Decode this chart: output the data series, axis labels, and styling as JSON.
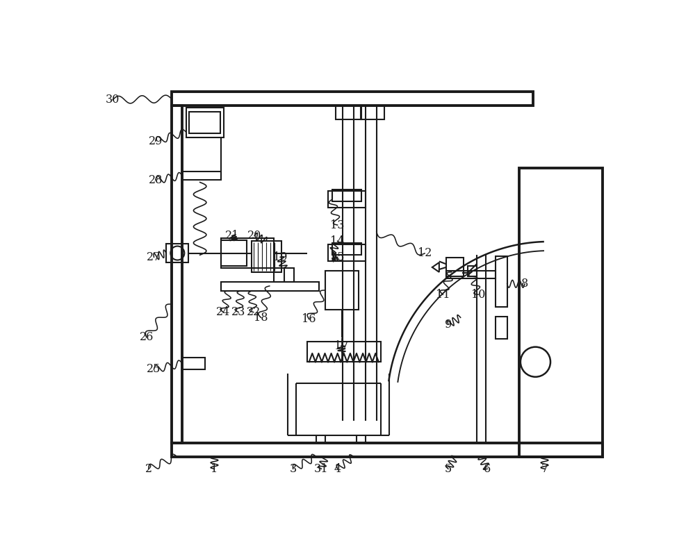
{
  "bg": "#ffffff",
  "lc": "#1a1a1a",
  "lw": 1.5,
  "lw2": 2.8,
  "fw": 10.0,
  "fh": 7.95,
  "labels": [
    [
      "30",
      0.42,
      7.28
    ],
    [
      "29",
      1.25,
      6.55
    ],
    [
      "28",
      1.25,
      5.75
    ],
    [
      "27",
      1.22,
      4.35
    ],
    [
      "26",
      1.1,
      2.85
    ],
    [
      "25",
      1.25,
      2.25
    ],
    [
      "24",
      2.55,
      3.35
    ],
    [
      "23",
      2.82,
      3.35
    ],
    [
      "22",
      3.08,
      3.35
    ],
    [
      "21",
      2.72,
      4.72
    ],
    [
      "20",
      3.12,
      4.72
    ],
    [
      "19",
      3.58,
      4.35
    ],
    [
      "18",
      3.22,
      3.22
    ],
    [
      "13",
      4.65,
      4.92
    ],
    [
      "14",
      4.65,
      4.62
    ],
    [
      "15",
      4.65,
      4.32
    ],
    [
      "12",
      6.28,
      4.42
    ],
    [
      "16",
      4.12,
      3.18
    ],
    [
      "17",
      4.72,
      2.72
    ],
    [
      "11",
      6.62,
      3.62
    ],
    [
      "10",
      7.28,
      3.62
    ],
    [
      "9",
      6.72,
      3.08
    ],
    [
      "8",
      8.15,
      3.82
    ],
    [
      "1",
      2.32,
      0.42
    ],
    [
      "2",
      1.12,
      0.42
    ],
    [
      "3",
      3.82,
      0.42
    ],
    [
      "31",
      4.35,
      0.42
    ],
    [
      "4",
      4.65,
      0.42
    ],
    [
      "5",
      6.72,
      0.42
    ],
    [
      "6",
      7.45,
      0.42
    ],
    [
      "7",
      8.52,
      0.42
    ]
  ]
}
